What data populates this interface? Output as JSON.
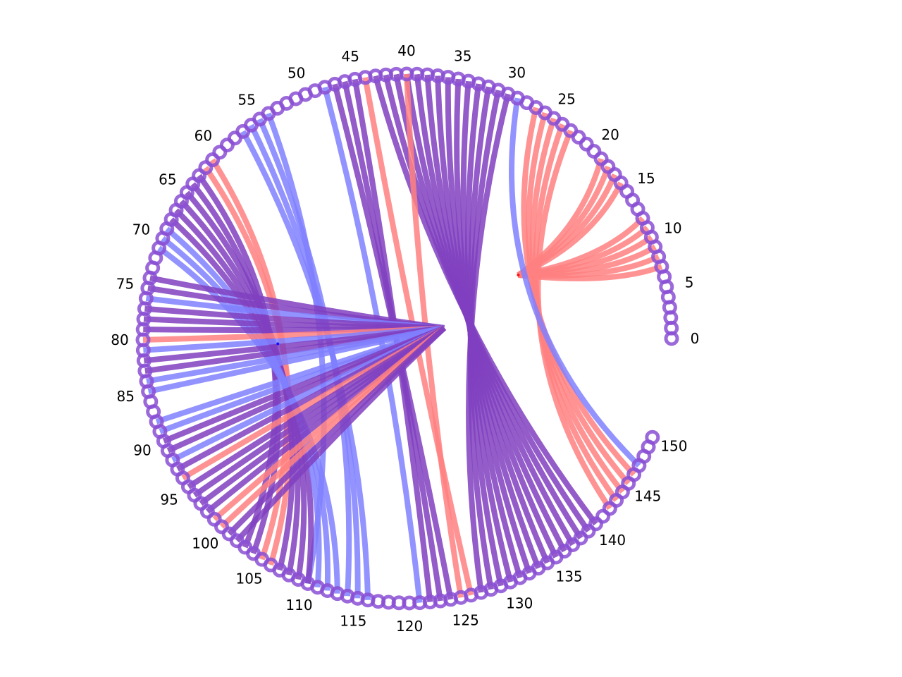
{
  "chart_data": {
    "type": "arc-diagram",
    "node_count": 151,
    "node_range": [
      0,
      150
    ],
    "tick_labels": [
      "0",
      "5",
      "10",
      "15",
      "20",
      "25",
      "30",
      "35",
      "40",
      "45",
      "50",
      "55",
      "60",
      "65",
      "70",
      "75",
      "80",
      "85",
      "90",
      "95",
      "100",
      "105",
      "110",
      "115",
      "120",
      "125",
      "130",
      "135",
      "140",
      "145",
      "150"
    ],
    "colors": {
      "red": "#ff8080",
      "blue": "#8080ff",
      "purple": "#8040c0",
      "node_stroke": "#8a4fd4",
      "hub_red": "#ff1010",
      "hub_blue": "#1010ff"
    },
    "edge_groups": [
      {
        "color": "red",
        "sources": [
          7,
          8,
          9,
          10,
          11,
          12,
          16,
          17,
          18,
          19
        ],
        "hub": [
          -0.67,
          0.14
        ]
      },
      {
        "color": "red",
        "sources": [
          23,
          24,
          25,
          26,
          27
        ],
        "targets": [
          142,
          143,
          144,
          145,
          146
        ]
      },
      {
        "color": "blue",
        "sources": [
          29
        ],
        "targets": [
          147
        ]
      },
      {
        "color": "purple",
        "sources": [
          30,
          31,
          32,
          33,
          34,
          35,
          36,
          37,
          38,
          39,
          40,
          41,
          42,
          43
        ],
        "targets": [
          127,
          128,
          129,
          130,
          131,
          132,
          133,
          134,
          135,
          136,
          137,
          138,
          139,
          140
        ]
      },
      {
        "color": "red",
        "sources": [
          40,
          44
        ],
        "targets": [
          125,
          126
        ]
      },
      {
        "color": "purple",
        "sources": [
          45,
          46,
          47
        ],
        "targets": [
          122,
          123,
          124
        ]
      },
      {
        "color": "blue",
        "sources": [
          48
        ],
        "targets": [
          121
        ]
      },
      {
        "color": "blue",
        "sources": [
          54,
          55,
          56,
          57
        ],
        "targets": [
          110,
          114,
          115,
          116
        ]
      },
      {
        "color": "red",
        "sources": [
          61,
          62
        ],
        "targets": [
          105,
          106
        ]
      },
      {
        "color": "purple",
        "sources": [
          63,
          64,
          65,
          66,
          67,
          68
        ],
        "targets": [
          103,
          104,
          107,
          108,
          109,
          110
        ]
      },
      {
        "color": "blue",
        "sources": [
          69,
          70,
          71
        ],
        "targets": [
          111,
          112,
          113
        ]
      },
      {
        "hub": [
          0.14,
          0.04
        ],
        "spokes": [
          {
            "node": 74,
            "color": "purple"
          },
          {
            "node": 75,
            "color": "purple"
          },
          {
            "node": 76,
            "color": "blue"
          },
          {
            "node": 77,
            "color": "purple"
          },
          {
            "node": 78,
            "color": "purple"
          },
          {
            "node": 79,
            "color": "purple"
          },
          {
            "node": 80,
            "color": "red"
          },
          {
            "node": 81,
            "color": "blue"
          },
          {
            "node": 82,
            "color": "purple"
          },
          {
            "node": 83,
            "color": "purple"
          },
          {
            "node": 84,
            "color": "blue"
          },
          {
            "node": 85,
            "color": "blue"
          },
          {
            "node": 88,
            "color": "blue"
          },
          {
            "node": 89,
            "color": "blue"
          },
          {
            "node": 90,
            "color": "purple"
          },
          {
            "node": 91,
            "color": "purple"
          },
          {
            "node": 92,
            "color": "blue"
          },
          {
            "node": 93,
            "color": "purple"
          },
          {
            "node": 94,
            "color": "red"
          },
          {
            "node": 95,
            "color": "purple"
          },
          {
            "node": 96,
            "color": "purple"
          },
          {
            "node": 97,
            "color": "purple"
          },
          {
            "node": 98,
            "color": "purple"
          },
          {
            "node": 99,
            "color": "red"
          },
          {
            "node": 100,
            "color": "red"
          },
          {
            "node": 101,
            "color": "purple"
          },
          {
            "node": 102,
            "color": "purple"
          }
        ]
      }
    ]
  }
}
